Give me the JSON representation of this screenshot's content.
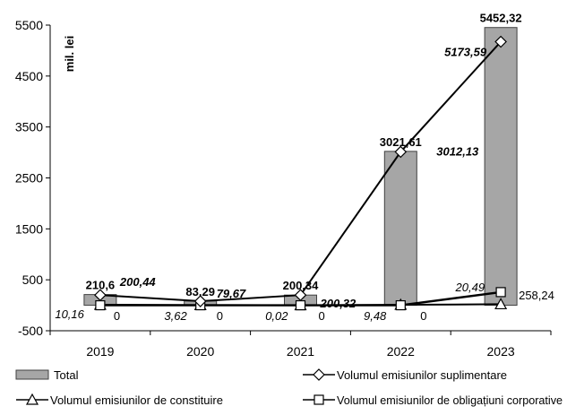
{
  "chart_data": {
    "type": "bar",
    "title": "",
    "xlabel": "",
    "ylabel": "mil. lei",
    "ylim": [
      -500,
      5500
    ],
    "yticks": [
      5500,
      4500,
      3500,
      2500,
      1500,
      500,
      -500
    ],
    "grid": false,
    "legend_position": "bottom",
    "categories": [
      "2019",
      "2020",
      "2021",
      "2022",
      "2023"
    ],
    "bar_series": {
      "name": "Total",
      "values": [
        210.6,
        83.29,
        200.34,
        3021.61,
        5452.32
      ],
      "labels": [
        "210,6",
        "83,29",
        "200,34",
        "3021,61",
        "5452,32"
      ],
      "color": "#a6a6a6"
    },
    "line_series": [
      {
        "name": "Volumul emisiunilor suplimentare",
        "marker": "diamond",
        "values": [
          200.44,
          79.67,
          200.32,
          3012.13,
          5173.59
        ],
        "labels": [
          "200,44",
          "79,67",
          "200,32",
          "3012,13",
          "5173,59"
        ]
      },
      {
        "name": "Volumul emisiunilor de constituire",
        "marker": "triangle",
        "values": [
          10.16,
          3.62,
          0.02,
          9.48,
          20.49
        ],
        "labels": [
          "10,16",
          "3,62",
          "0,02",
          "9,48",
          "20,49"
        ]
      },
      {
        "name": "Volumul emisiunilor de obligațiuni corporative",
        "marker": "square",
        "values": [
          0,
          0,
          0,
          0,
          258.24
        ],
        "labels": [
          "0",
          "0",
          "0",
          "0",
          "258,24"
        ]
      }
    ]
  }
}
